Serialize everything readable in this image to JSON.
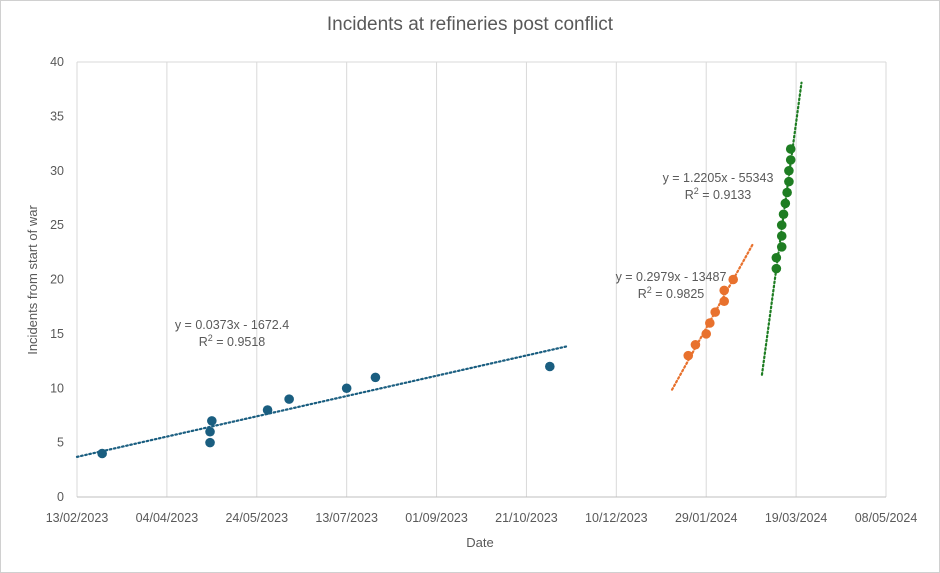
{
  "chart_data": {
    "type": "scatter",
    "title": "Incidents at refineries post conflict",
    "xlabel": "Date",
    "ylabel": "Incidents from start of war",
    "ylim": [
      0,
      40
    ],
    "yticks": [
      0,
      5,
      10,
      15,
      20,
      25,
      30,
      35,
      40
    ],
    "xlim": [
      "2023-02-13",
      "2024-05-08"
    ],
    "xticks": [
      "13/02/2023",
      "04/04/2023",
      "24/05/2023",
      "13/07/2023",
      "01/09/2023",
      "21/10/2023",
      "10/12/2023",
      "29/01/2024",
      "19/03/2024",
      "08/05/2024"
    ],
    "grid": "vertical",
    "legend": "none",
    "series": [
      {
        "color": "#1a5e80",
        "points": [
          {
            "x": "2023-02-27",
            "y": 4
          },
          {
            "x": "2023-04-28",
            "y": 5
          },
          {
            "x": "2023-04-28",
            "y": 6
          },
          {
            "x": "2023-04-29",
            "y": 7
          },
          {
            "x": "2023-05-30",
            "y": 8
          },
          {
            "x": "2023-06-11",
            "y": 9
          },
          {
            "x": "2023-07-13",
            "y": 10
          },
          {
            "x": "2023-07-29",
            "y": 11
          },
          {
            "x": "2023-11-03",
            "y": 12
          }
        ],
        "trendline": {
          "equation": "y = 0.0373x - 1672.4",
          "r2_label": "R",
          "r2_value": " = 0.9518",
          "slope": 0.0373,
          "from": "2023-02-13",
          "to": "2023-11-12",
          "color": "#1a5e80"
        }
      },
      {
        "color": "#e8712d",
        "points": [
          {
            "x": "2024-01-19",
            "y": 13
          },
          {
            "x": "2024-01-23",
            "y": 14
          },
          {
            "x": "2024-01-29",
            "y": 15
          },
          {
            "x": "2024-01-31",
            "y": 16
          },
          {
            "x": "2024-02-03",
            "y": 17
          },
          {
            "x": "2024-02-08",
            "y": 18
          },
          {
            "x": "2024-02-08",
            "y": 19
          },
          {
            "x": "2024-02-13",
            "y": 20
          }
        ],
        "trendline": {
          "equation": "y = 0.2979x - 13487",
          "r2_label": "R",
          "r2_value": " = 0.9825",
          "slope": 0.2979,
          "from": "2024-01-10",
          "to": "2024-02-24",
          "color": "#e8712d"
        }
      },
      {
        "color": "#1e7d22",
        "points": [
          {
            "x": "2024-03-08",
            "y": 21
          },
          {
            "x": "2024-03-08",
            "y": 22
          },
          {
            "x": "2024-03-11",
            "y": 23
          },
          {
            "x": "2024-03-11",
            "y": 24
          },
          {
            "x": "2024-03-11",
            "y": 25
          },
          {
            "x": "2024-03-12",
            "y": 26
          },
          {
            "x": "2024-03-13",
            "y": 27
          },
          {
            "x": "2024-03-14",
            "y": 28
          },
          {
            "x": "2024-03-15",
            "y": 29
          },
          {
            "x": "2024-03-15",
            "y": 30
          },
          {
            "x": "2024-03-16",
            "y": 31
          },
          {
            "x": "2024-03-16",
            "y": 32
          }
        ],
        "trendline": {
          "equation": "y = 1.2205x - 55343",
          "r2_label": "R",
          "r2_value": " = 0.9133",
          "slope": 1.2205,
          "from": "2024-02-29",
          "to": "2024-03-22",
          "color": "#1e7d22"
        }
      }
    ]
  }
}
